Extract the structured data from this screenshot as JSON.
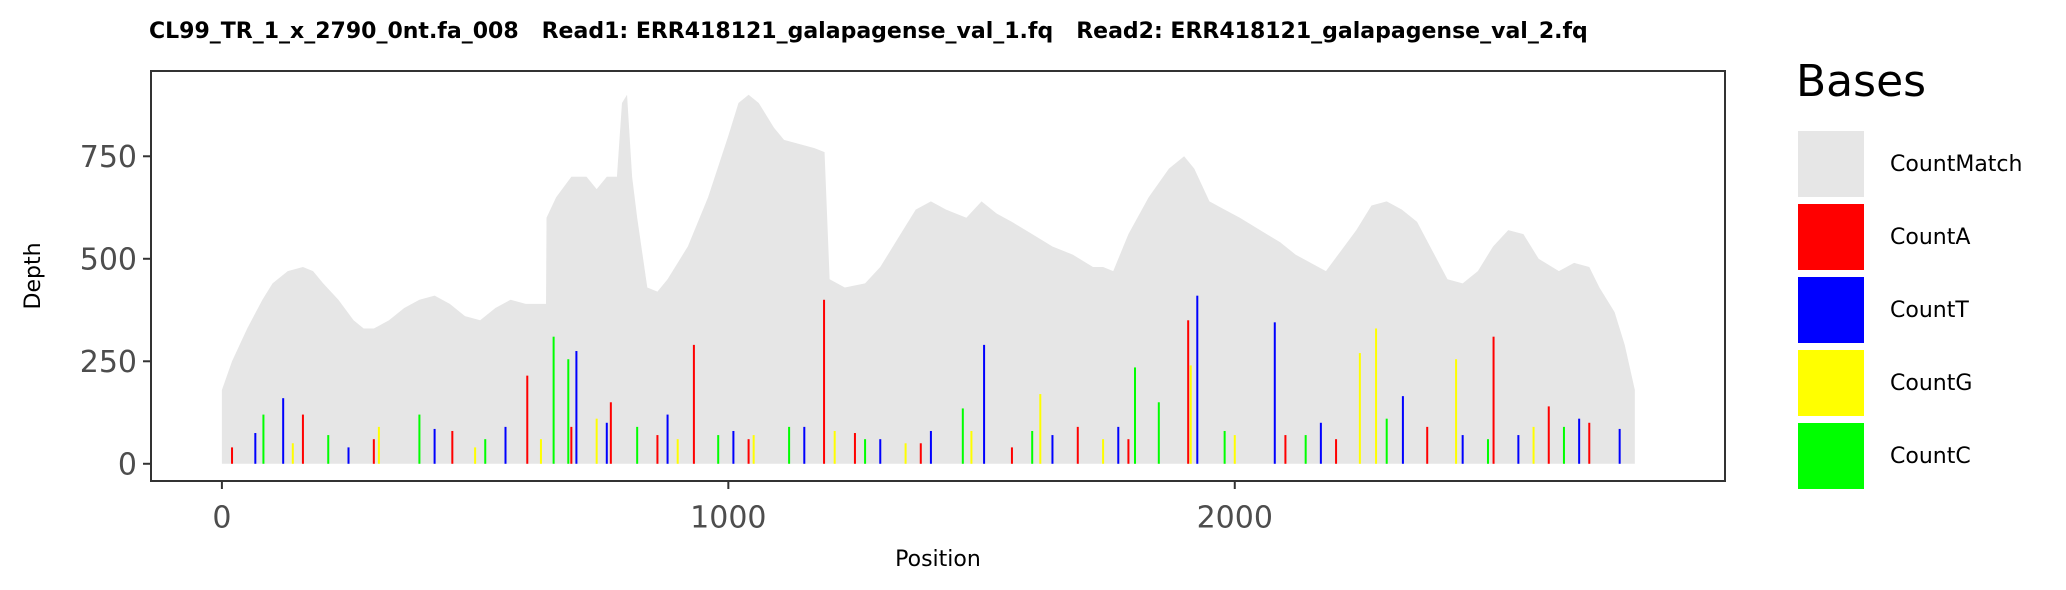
{
  "chart_data": {
    "type": "coverage",
    "title": "CL99_TR_1_x_2790_0nt.fa_008   Read1: ERR418121_galapagense_val_1.fq   Read2: ERR418121_galapagense_val_2.fq",
    "x_label": "Position",
    "y_label": "Depth",
    "legend_title": "Bases",
    "legend_position": "right",
    "grid": false,
    "xlim": [
      -140,
      2968
    ],
    "ylim": [
      -42,
      958
    ],
    "xticks": [
      0,
      1000,
      2000
    ],
    "yticks": [
      0,
      250,
      500,
      750
    ],
    "series": [
      {
        "name": "CountMatch",
        "color": "#e6e6e6",
        "style": "area",
        "x": [
          0,
          20,
          50,
          80,
          100,
          130,
          160,
          180,
          200,
          230,
          260,
          280,
          300,
          330,
          360,
          390,
          420,
          450,
          480,
          510,
          540,
          570,
          600,
          640,
          641,
          660,
          690,
          720,
          740,
          760,
          780,
          790,
          800,
          810,
          820,
          840,
          860,
          880,
          920,
          960,
          1000,
          1020,
          1040,
          1060,
          1090,
          1110,
          1140,
          1170,
          1190,
          1200,
          1230,
          1270,
          1300,
          1340,
          1370,
          1400,
          1430,
          1470,
          1500,
          1530,
          1560,
          1600,
          1640,
          1680,
          1720,
          1740,
          1760,
          1790,
          1830,
          1870,
          1900,
          1920,
          1950,
          1980,
          2010,
          2050,
          2090,
          2120,
          2150,
          2180,
          2210,
          2240,
          2270,
          2300,
          2330,
          2360,
          2390,
          2420,
          2450,
          2480,
          2510,
          2540,
          2570,
          2600,
          2640,
          2670,
          2700,
          2720,
          2750,
          2770,
          2790
        ],
        "values": [
          180,
          250,
          330,
          400,
          440,
          470,
          480,
          470,
          440,
          400,
          350,
          330,
          330,
          350,
          380,
          400,
          410,
          390,
          360,
          350,
          380,
          400,
          390,
          390,
          600,
          650,
          700,
          700,
          670,
          700,
          700,
          880,
          900,
          700,
          600,
          430,
          420,
          450,
          530,
          650,
          800,
          880,
          900,
          880,
          820,
          790,
          780,
          770,
          760,
          450,
          430,
          440,
          480,
          560,
          620,
          640,
          620,
          600,
          640,
          610,
          590,
          560,
          530,
          510,
          480,
          480,
          470,
          560,
          650,
          720,
          750,
          720,
          640,
          620,
          600,
          570,
          540,
          510,
          490,
          470,
          520,
          570,
          630,
          640,
          620,
          590,
          520,
          450,
          440,
          470,
          530,
          570,
          560,
          500,
          470,
          490,
          480,
          430,
          370,
          290,
          180
        ]
      },
      {
        "name": "CountA",
        "color": "#ff0000",
        "style": "spike",
        "x": [
          20,
          160,
          300,
          455,
          603,
          690,
          768,
          860,
          932,
          1040,
          1189,
          1250,
          1380,
          1560,
          1690,
          1790,
          1908,
          2100,
          2200,
          2380,
          2511,
          2620,
          2700
        ],
        "values": [
          40,
          120,
          60,
          80,
          215,
          90,
          150,
          70,
          290,
          60,
          400,
          75,
          50,
          40,
          90,
          60,
          350,
          70,
          60,
          90,
          310,
          140,
          100
        ]
      },
      {
        "name": "CountT",
        "color": "#0000ff",
        "style": "spike",
        "x": [
          66,
          121,
          250,
          420,
          560,
          700,
          760,
          880,
          1010,
          1150,
          1300,
          1400,
          1505,
          1640,
          1770,
          1926,
          2079,
          2170,
          2332,
          2450,
          2560,
          2680,
          2760
        ],
        "values": [
          75,
          160,
          40,
          85,
          90,
          275,
          100,
          120,
          80,
          90,
          60,
          80,
          290,
          70,
          90,
          410,
          345,
          100,
          165,
          70,
          70,
          110,
          85
        ]
      },
      {
        "name": "CountG",
        "color": "#ffff00",
        "style": "spike",
        "x": [
          140,
          310,
          500,
          630,
          740,
          900,
          1050,
          1210,
          1350,
          1480,
          1616,
          1740,
          1913,
          2000,
          2247,
          2279,
          2437,
          2590
        ],
        "values": [
          50,
          90,
          40,
          60,
          110,
          60,
          70,
          80,
          50,
          80,
          170,
          60,
          240,
          70,
          270,
          330,
          255,
          90
        ]
      },
      {
        "name": "CountC",
        "color": "#00ff00",
        "style": "spike",
        "x": [
          82,
          210,
          390,
          520,
          655,
          684,
          820,
          980,
          1120,
          1270,
          1463,
          1600,
          1803,
          1850,
          1980,
          2140,
          2300,
          2500,
          2650
        ],
        "values": [
          120,
          70,
          120,
          60,
          310,
          255,
          90,
          70,
          90,
          60,
          135,
          80,
          235,
          150,
          80,
          70,
          110,
          60,
          90
        ]
      }
    ]
  }
}
